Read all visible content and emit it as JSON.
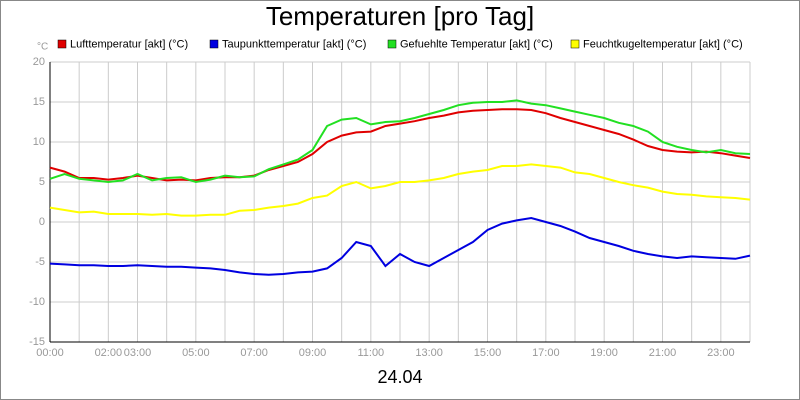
{
  "chart_data": {
    "type": "line",
    "title": "Temperaturen [pro Tag]",
    "ylabel": "°C",
    "xlabel": "24.04",
    "x": [
      0,
      0.5,
      1,
      1.5,
      2,
      2.5,
      3,
      3.5,
      4,
      4.5,
      5,
      5.5,
      6,
      6.5,
      7,
      7.5,
      8,
      8.5,
      9,
      9.5,
      10,
      10.5,
      11,
      11.5,
      12,
      12.5,
      13,
      13.5,
      14,
      14.5,
      15,
      15.5,
      16,
      16.5,
      17,
      17.5,
      18,
      18.5,
      19,
      19.5,
      20,
      20.5,
      21,
      21.5,
      22,
      22.5,
      23,
      23.5,
      24
    ],
    "series": [
      {
        "name": "Lufttemperatur [akt] (°C)",
        "color": "#e00000",
        "values": [
          6.8,
          6.3,
          5.5,
          5.5,
          5.3,
          5.5,
          5.8,
          5.5,
          5.2,
          5.3,
          5.2,
          5.5,
          5.6,
          5.6,
          5.8,
          6.5,
          7.0,
          7.5,
          8.5,
          10,
          10.8,
          11.2,
          11.3,
          12,
          12.3,
          12.6,
          13,
          13.3,
          13.7,
          13.9,
          14,
          14.1,
          14.1,
          14,
          13.6,
          13,
          12.5,
          12,
          11.5,
          11,
          10.3,
          9.5,
          9,
          8.8,
          8.7,
          8.8,
          8.6,
          8.3,
          8.0
        ]
      },
      {
        "name": "Taupunkttemperatur [akt] (°C)",
        "color": "#0000e0",
        "values": [
          -5.2,
          -5.3,
          -5.4,
          -5.4,
          -5.5,
          -5.5,
          -5.4,
          -5.5,
          -5.6,
          -5.6,
          -5.7,
          -5.8,
          -6,
          -6.3,
          -6.5,
          -6.6,
          -6.5,
          -6.3,
          -6.2,
          -5.8,
          -4.5,
          -2.5,
          -3,
          -5.5,
          -4,
          -5,
          -5.5,
          -4.5,
          -3.5,
          -2.5,
          -1,
          -0.2,
          0.2,
          0.5,
          0,
          -0.5,
          -1.2,
          -2,
          -2.5,
          -3,
          -3.6,
          -4,
          -4.3,
          -4.5,
          -4.3,
          -4.4,
          -4.5,
          -4.6,
          -4.2
        ]
      },
      {
        "name": "Gefuehlte Temperatur [akt] (°C)",
        "color": "#22e022",
        "values": [
          5.4,
          6,
          5.4,
          5.2,
          5,
          5.2,
          6,
          5.2,
          5.5,
          5.6,
          5,
          5.3,
          5.8,
          5.6,
          5.7,
          6.6,
          7.2,
          7.8,
          9,
          12,
          12.8,
          13,
          12.2,
          12.5,
          12.6,
          13,
          13.5,
          14,
          14.6,
          14.9,
          15,
          15,
          15.2,
          14.8,
          14.6,
          14.2,
          13.8,
          13.4,
          13,
          12.4,
          12,
          11.3,
          10,
          9.4,
          9,
          8.7,
          9,
          8.6,
          8.5
        ]
      },
      {
        "name": "Feuchtkugeltemperatur [akt] (°C)",
        "color": "#ffff00",
        "values": [
          1.8,
          1.5,
          1.2,
          1.3,
          1,
          1,
          1,
          0.9,
          1,
          0.8,
          0.8,
          0.9,
          0.9,
          1.4,
          1.5,
          1.8,
          2,
          2.3,
          3,
          3.3,
          4.5,
          5,
          4.2,
          4.5,
          5,
          5,
          5.2,
          5.5,
          6,
          6.3,
          6.5,
          7,
          7,
          7.2,
          7,
          6.8,
          6.2,
          6,
          5.5,
          5,
          4.6,
          4.3,
          3.8,
          3.5,
          3.4,
          3.2,
          3.1,
          3,
          2.8
        ]
      }
    ],
    "xlim": [
      0,
      24
    ],
    "xticks": [
      {
        "value": 0,
        "label": "00:00"
      },
      {
        "value": 1,
        "label": null
      },
      {
        "value": 2,
        "label": "02:00"
      },
      {
        "value": 3,
        "label": "03:00"
      },
      {
        "value": 4,
        "label": null
      },
      {
        "value": 5,
        "label": "05:00"
      },
      {
        "value": 6,
        "label": null
      },
      {
        "value": 7,
        "label": "07:00"
      },
      {
        "value": 8,
        "label": null
      },
      {
        "value": 9,
        "label": "09:00"
      },
      {
        "value": 10,
        "label": null
      },
      {
        "value": 11,
        "label": "11:00"
      },
      {
        "value": 12,
        "label": null
      },
      {
        "value": 13,
        "label": "13:00"
      },
      {
        "value": 14,
        "label": null
      },
      {
        "value": 15,
        "label": "15:00"
      },
      {
        "value": 16,
        "label": null
      },
      {
        "value": 17,
        "label": "17:00"
      },
      {
        "value": 18,
        "label": null
      },
      {
        "value": 19,
        "label": "19:00"
      },
      {
        "value": 20,
        "label": null
      },
      {
        "value": 21,
        "label": "21:00"
      },
      {
        "value": 22,
        "label": null
      },
      {
        "value": 23,
        "label": "23:00"
      },
      {
        "value": 24,
        "label": null
      }
    ],
    "ylim": [
      -15,
      20
    ],
    "yticks": [
      -15,
      -10,
      -5,
      0,
      5,
      10,
      15,
      20
    ],
    "grid": true
  }
}
